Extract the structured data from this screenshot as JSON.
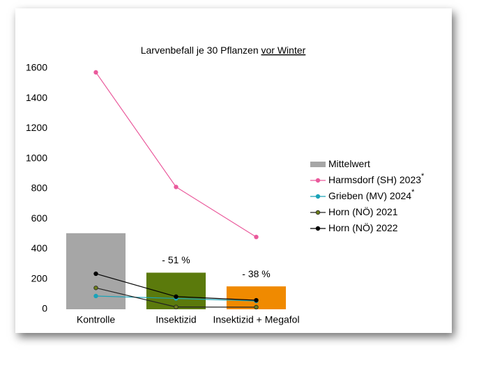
{
  "chart_data": {
    "type": "bar_line",
    "title": "Larvenbefall je 30 Pflanzen",
    "title_underlined": "vor Winter",
    "categories": [
      "Kontrolle",
      "Insektizid",
      "Insektizid + Megafol"
    ],
    "ylim": [
      0,
      1600
    ],
    "yticks": [
      0,
      200,
      400,
      600,
      800,
      1000,
      1200,
      1400,
      1600
    ],
    "grid": false,
    "legend": "right",
    "bar_annotations": [
      null,
      "- 51 %",
      "- 38 %"
    ],
    "series": [
      {
        "name": "Mittelwert",
        "kind": "bar",
        "color": "#a6a6a6",
        "colors": [
          "#a6a6a6",
          "#5b7a0c",
          "#f08a00"
        ],
        "values": [
          505,
          243,
          152
        ]
      },
      {
        "name": "Harmsdorf (SH) 2023",
        "note": "*",
        "kind": "line",
        "color": "#ea5a9c",
        "marker": "#ea5a9c",
        "values": [
          1573,
          812,
          480
        ]
      },
      {
        "name": "Grieben (MV) 2024",
        "note": "*",
        "kind": "line",
        "color": "#1ba3b8",
        "marker": "#1ba3b8",
        "values": [
          88,
          72,
          55
        ]
      },
      {
        "name": "Horn (NÖ) 2021",
        "kind": "line",
        "color": "#222222",
        "marker": "#6e7f1c",
        "values": [
          142,
          15,
          14
        ]
      },
      {
        "name": "Horn (NÖ) 2022",
        "kind": "line",
        "color": "#000000",
        "marker": "#000000",
        "values": [
          236,
          84,
          60
        ]
      }
    ]
  }
}
